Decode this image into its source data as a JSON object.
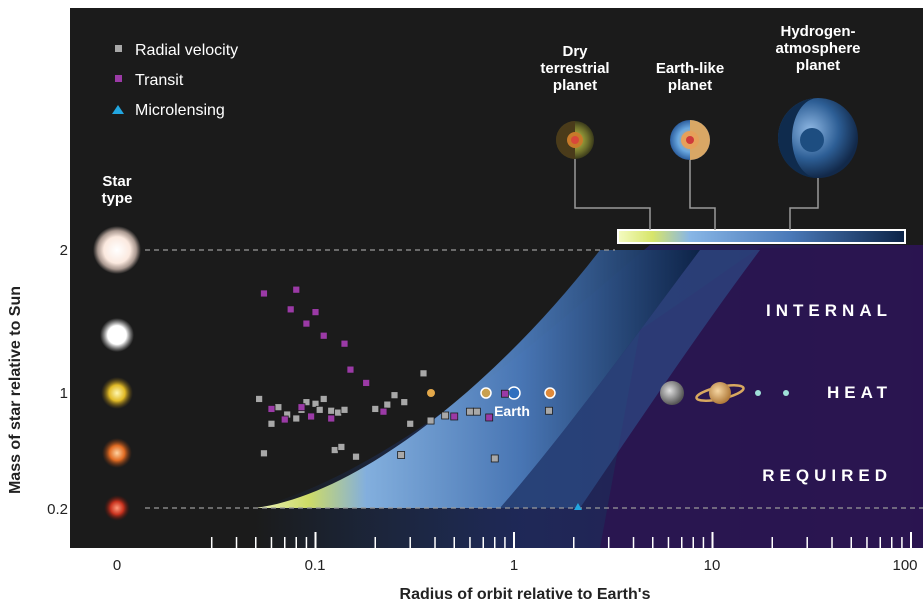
{
  "chart_data": {
    "type": "scatter",
    "ylabel": "Mass of star relative to Sun",
    "xlabel": "Radius of orbit relative to Earth's",
    "x_scale": "log",
    "xlim": [
      0.03,
      100
    ],
    "x_ticks": [
      "0",
      "0.1",
      "1",
      "10",
      "100"
    ],
    "y_ticks": [
      "0.2",
      "1",
      "2"
    ],
    "legend_position": "top-left",
    "series": [
      {
        "name": "Radial velocity",
        "marker": "square",
        "color": "#a8a8a8",
        "points": [
          [
            0.052,
            0.92
          ],
          [
            0.055,
            0.43
          ],
          [
            0.06,
            0.65
          ],
          [
            0.065,
            0.82
          ],
          [
            0.072,
            0.74
          ],
          [
            0.08,
            0.7
          ],
          [
            0.085,
            0.79
          ],
          [
            0.09,
            0.88
          ],
          [
            0.1,
            0.86
          ],
          [
            0.105,
            0.79
          ],
          [
            0.11,
            0.92
          ],
          [
            0.12,
            0.78
          ],
          [
            0.125,
            0.45
          ],
          [
            0.13,
            0.76
          ],
          [
            0.135,
            0.47
          ],
          [
            0.14,
            0.79
          ],
          [
            0.16,
            0.41
          ],
          [
            0.2,
            0.8
          ],
          [
            0.23,
            0.85
          ],
          [
            0.27,
            0.42
          ],
          [
            0.25,
            0.97
          ],
          [
            0.28,
            0.88
          ],
          [
            0.3,
            0.65
          ],
          [
            0.35,
            1.1
          ],
          [
            0.38,
            0.68
          ],
          [
            0.45,
            0.73
          ],
          [
            0.6,
            0.77
          ],
          [
            0.65,
            0.77
          ],
          [
            0.8,
            0.4
          ],
          [
            1.5,
            0.78
          ]
        ]
      },
      {
        "name": "Transit",
        "marker": "square",
        "color": "#9b3aa6",
        "points": [
          [
            0.055,
            1.62
          ],
          [
            0.06,
            0.8
          ],
          [
            0.07,
            0.69
          ],
          [
            0.075,
            1.5
          ],
          [
            0.08,
            1.65
          ],
          [
            0.085,
            0.82
          ],
          [
            0.09,
            1.4
          ],
          [
            0.095,
            0.72
          ],
          [
            0.1,
            1.48
          ],
          [
            0.11,
            1.32
          ],
          [
            0.12,
            0.7
          ],
          [
            0.14,
            1.27
          ],
          [
            0.15,
            1.12
          ],
          [
            0.18,
            1.05
          ],
          [
            0.22,
            0.77
          ],
          [
            0.9,
            0.99
          ],
          [
            0.75,
            0.71
          ],
          [
            0.5,
            0.72
          ]
        ]
      },
      {
        "name": "Microlensing",
        "marker": "triangle",
        "color": "#22a6e0",
        "points": [
          [
            2.1,
            0.2
          ]
        ]
      }
    ],
    "planets": [
      {
        "label": "Earth",
        "x": 1,
        "y": 1
      }
    ],
    "regions": [
      "INTERNAL",
      "HEAT",
      "REQUIRED"
    ],
    "planet_types": [
      "Dry terrestrial planet",
      "Earth-like planet",
      "Hydrogen-atmosphere planet"
    ]
  },
  "legend": {
    "radial": "Radial velocity",
    "transit": "Transit",
    "micro": "Microlensing"
  },
  "labels": {
    "star_type_1": "Star",
    "star_type_2": "type",
    "earth": "Earth",
    "region_1": "INTERNAL",
    "region_2": "HEAT",
    "region_3": "REQUIRED",
    "dry_1": "Dry",
    "dry_2": "terrestrial",
    "dry_3": "planet",
    "earthlike_1": "Earth-like",
    "earthlike_2": "planet",
    "hydro_1": "Hydrogen-",
    "hydro_2": "atmosphere",
    "hydro_3": "planet",
    "ylabel": "Mass of star relative to Sun",
    "xlabel": "Radius of orbit relative to Earth's",
    "xt0": "0",
    "xt1": "0.1",
    "xt2": "1",
    "xt3": "10",
    "xt4": "100",
    "yt1": "0.2",
    "yt2": "1",
    "yt3": "2"
  },
  "colors": {
    "background": "#1b1b1b",
    "heat_region": "#2a1550",
    "dry_band": "#d7e56a",
    "habitable_band": "#8fb6e6"
  }
}
